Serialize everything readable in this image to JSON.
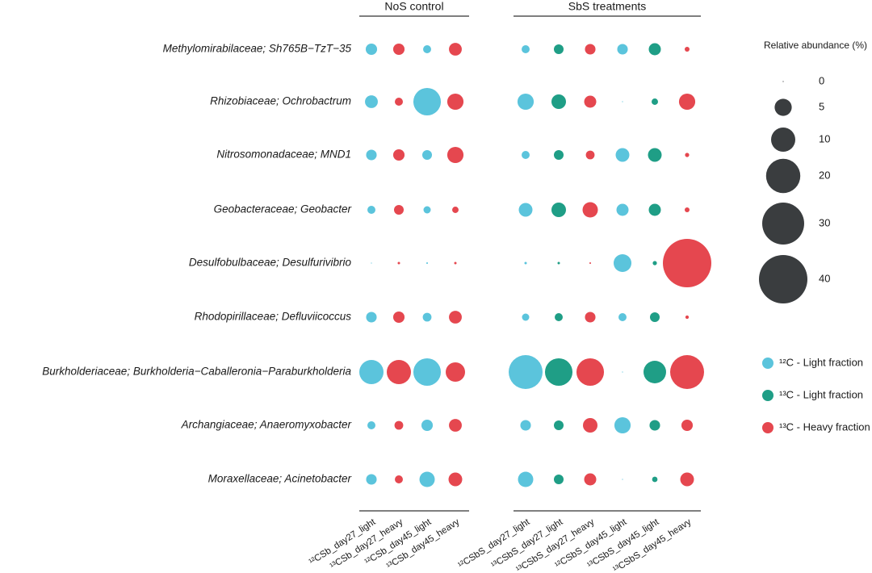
{
  "chart_data": {
    "type": "bubble",
    "rows": [
      "Methylomirabilaceae; Sh765B−TzT−35",
      "Rhizobiaceae; Ochrobactrum",
      "Nitrosomonadaceae; MND1",
      "Geobacteraceae; Geobacter",
      "Desulfobulbaceae; Desulfurivibrio",
      "Rhodopirillaceae; Defluviicoccus",
      "Burkholderiaceae; Burkholderia−Caballeronia−Paraburkholderia",
      "Archangiaceae; Anaeromyxobacter",
      "Moraxellaceae; Acinetobacter"
    ],
    "columns": [
      "¹²CSb_day27_light",
      "¹³CSb_day27_heavy",
      "¹²CSb_day45_light",
      "¹³CSb_day45_heavy",
      "¹²CSbS_day27_light",
      "¹³CSbS_day27_light",
      "¹³CSbS_day27_heavy",
      "¹²CSbS_day45_light",
      "¹³CSbS_day45_light",
      "¹³CSbS_day45_heavy"
    ],
    "groups": [
      {
        "name": "NoS control",
        "count": 4
      },
      {
        "name": "SbS treatments",
        "count": 6
      }
    ],
    "series": [
      {
        "name": "¹²C - Light fraction",
        "color": "#5bc4dc"
      },
      {
        "name": "¹³C - Light fraction",
        "color": "#1f9e86"
      },
      {
        "name": "¹³C - Heavy fraction",
        "color": "#e5474f"
      }
    ],
    "column_series": [
      0,
      2,
      0,
      2,
      0,
      1,
      2,
      0,
      1,
      2
    ],
    "values": [
      [
        2.2,
        2.2,
        1.1,
        2.8,
        1.1,
        1.6,
        1.9,
        1.9,
        2.5,
        0.4
      ],
      [
        2.8,
        1.1,
        12.9,
        4.5,
        4.5,
        3.6,
        2.5,
        0,
        0.7,
        4.5
      ],
      [
        1.9,
        2.2,
        1.6,
        4.5,
        1.1,
        1.6,
        1.3,
        3.2,
        3.2,
        0.3
      ],
      [
        1.1,
        1.6,
        0.9,
        0.7,
        3.2,
        3.6,
        4.0,
        2.5,
        2.5,
        0.4
      ],
      [
        0,
        0.1,
        0.05,
        0.1,
        0.1,
        0.1,
        0.05,
        5.4,
        0.3,
        40
      ],
      [
        1.9,
        2.2,
        1.3,
        2.8,
        0.9,
        1.1,
        1.9,
        1.1,
        1.6,
        0.2
      ],
      [
        10,
        10,
        12.9,
        6.4,
        19.6,
        12.9,
        12.9,
        0,
        8.7,
        19.6
      ],
      [
        1.1,
        1.3,
        2.2,
        2.8,
        1.9,
        1.6,
        3.6,
        4.5,
        1.9,
        2.2
      ],
      [
        1.9,
        1.1,
        4.0,
        3.2,
        4.0,
        1.6,
        2.5,
        0,
        0.5,
        3.2
      ]
    ],
    "size_legend": {
      "title": "Relative abundance (%)",
      "values": [
        0,
        5,
        10,
        20,
        30,
        40
      ],
      "color": "#3a3d3f"
    }
  }
}
